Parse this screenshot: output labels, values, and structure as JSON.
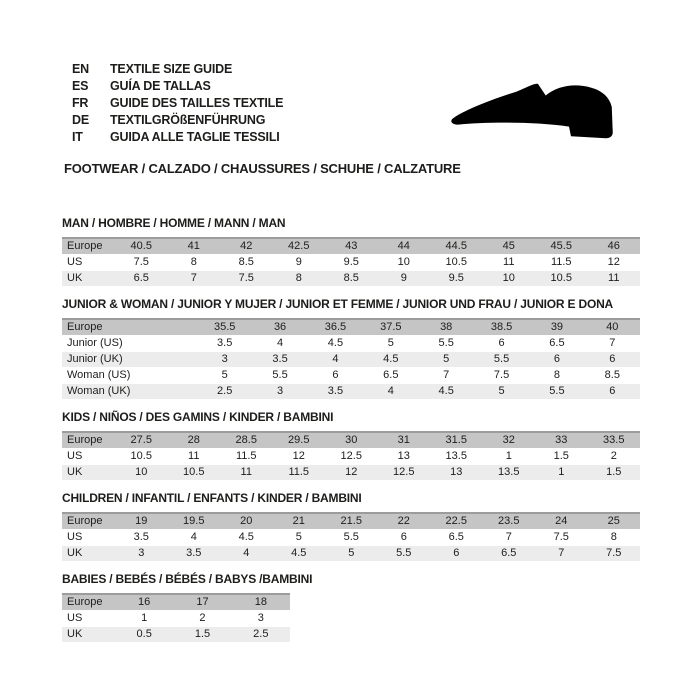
{
  "header": {
    "languages": [
      {
        "code": "EN",
        "label": "TEXTILE SIZE GUIDE"
      },
      {
        "code": "ES",
        "label": "GUÍA DE TALLAS"
      },
      {
        "code": "FR",
        "label": "GUIDE DES TAILLES TEXTILE"
      },
      {
        "code": "DE",
        "label": "TEXTILGRÖßENFÜHRUNG"
      },
      {
        "code": "IT",
        "label": "GUIDA ALLE TAGLIE TESSILI"
      }
    ],
    "category_title": "FOOTWEAR / CALZADO / CHAUSSURES / SCHUHE / CALZATURE",
    "shoe_icon": "dress-shoe-silhouette"
  },
  "colors": {
    "header_row_bg": "#c5c5c5",
    "alt_row_bg": "#ececec",
    "header_row_top_border": "#9c9c9c",
    "text": "#1d1d1b",
    "shoe": "#000000",
    "background": "#ffffff"
  },
  "tables": [
    {
      "title": "MAN / HOMBRE / HOMME / MANN / MAN",
      "rows": [
        {
          "label": "Europe",
          "values": [
            "40.5",
            "41",
            "42",
            "42.5",
            "43",
            "44",
            "44.5",
            "45",
            "45.5",
            "46"
          ]
        },
        {
          "label": "US",
          "values": [
            "7.5",
            "8",
            "8.5",
            "9",
            "9.5",
            "10",
            "10.5",
            "11",
            "11.5",
            "12"
          ]
        },
        {
          "label": "UK",
          "values": [
            "6.5",
            "7",
            "7.5",
            "8",
            "8.5",
            "9",
            "9.5",
            "10",
            "10.5",
            "11"
          ]
        }
      ]
    },
    {
      "title": "JUNIOR & WOMAN / JUNIOR Y MUJER / JUNIOR ET FEMME / JUNIOR UND FRAU / JUNIOR E DONA",
      "wide_labels": true,
      "rows": [
        {
          "label": "Europe",
          "values": [
            "35.5",
            "36",
            "36.5",
            "37.5",
            "38",
            "38.5",
            "39",
            "40"
          ]
        },
        {
          "label": "Junior (US)",
          "values": [
            "3.5",
            "4",
            "4.5",
            "5",
            "5.5",
            "6",
            "6.5",
            "7"
          ]
        },
        {
          "label": "Junior (UK)",
          "values": [
            "3",
            "3.5",
            "4",
            "4.5",
            "5",
            "5.5",
            "6",
            "6"
          ]
        },
        {
          "label": "Woman (US)",
          "values": [
            "5",
            "5.5",
            "6",
            "6.5",
            "7",
            "7.5",
            "8",
            "8.5"
          ]
        },
        {
          "label": "Woman (UK)",
          "values": [
            "2.5",
            "3",
            "3.5",
            "4",
            "4.5",
            "5",
            "5.5",
            "6"
          ]
        }
      ]
    },
    {
      "title": "KIDS / NIÑOS / DES GAMINS / KINDER / BAMBINI",
      "rows": [
        {
          "label": "Europe",
          "values": [
            "27.5",
            "28",
            "28.5",
            "29.5",
            "30",
            "31",
            "31.5",
            "32",
            "33",
            "33.5"
          ]
        },
        {
          "label": "US",
          "values": [
            "10.5",
            "11",
            "11.5",
            "12",
            "12.5",
            "13",
            "13.5",
            "1",
            "1.5",
            "2"
          ]
        },
        {
          "label": "UK",
          "values": [
            "10",
            "10.5",
            "11",
            "11.5",
            "12",
            "12.5",
            "13",
            "13.5",
            "1",
            "1.5"
          ]
        }
      ]
    },
    {
      "title": "CHILDREN / INFANTIL / ENFANTS / KINDER / BAMBINI",
      "rows": [
        {
          "label": "Europe",
          "values": [
            "19",
            "19.5",
            "20",
            "21",
            "21.5",
            "22",
            "22.5",
            "23.5",
            "24",
            "25"
          ]
        },
        {
          "label": "US",
          "values": [
            "3.5",
            "4",
            "4.5",
            "5",
            "5.5",
            "6",
            "6.5",
            "7",
            "7.5",
            "8"
          ]
        },
        {
          "label": "UK",
          "values": [
            "3",
            "3.5",
            "4",
            "4.5",
            "5",
            "5.5",
            "6",
            "6.5",
            "7",
            "7.5"
          ]
        }
      ]
    },
    {
      "title": "BABIES / BEBÉS / BÉBÉS / BABYS /BAMBINI",
      "narrow": true,
      "rows": [
        {
          "label": "Europe",
          "values": [
            "16",
            "17",
            "18"
          ]
        },
        {
          "label": "US",
          "values": [
            "1",
            "2",
            "3"
          ]
        },
        {
          "label": "UK",
          "values": [
            "0.5",
            "1.5",
            "2.5"
          ]
        }
      ]
    }
  ]
}
